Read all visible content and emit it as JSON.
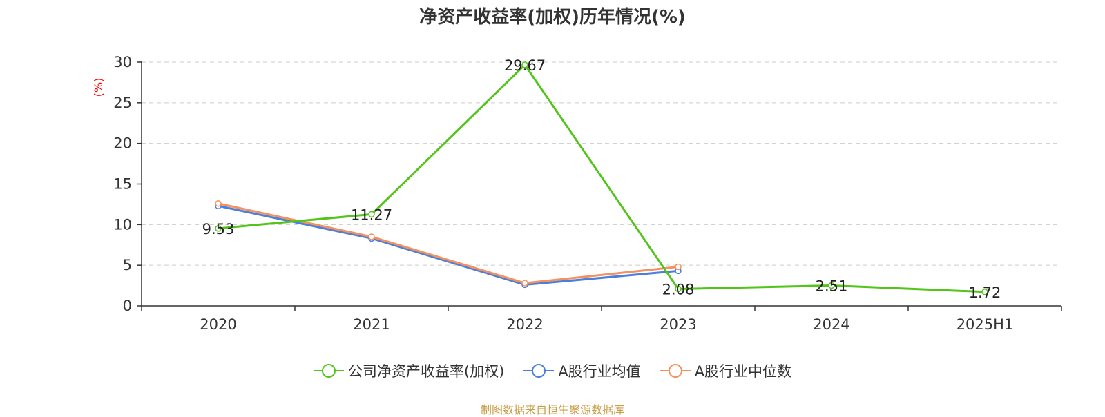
{
  "chart_data": {
    "type": "line",
    "title": "净资产收益率(加权)历年情况(%)",
    "ylabel": "(%)",
    "xlabel": "",
    "categories": [
      "2020",
      "2021",
      "2022",
      "2023",
      "2024",
      "2025H1"
    ],
    "ylim": [
      0,
      30
    ],
    "yticks": [
      "0",
      "5",
      "10",
      "15",
      "20",
      "25",
      "30"
    ],
    "grid": true,
    "legend_position": "bottom",
    "series": [
      {
        "name": "公司净资产收益率(加权)",
        "color": "#52c41a",
        "values": [
          9.53,
          11.27,
          29.67,
          2.08,
          2.51,
          1.72
        ],
        "labels": [
          "9.53",
          "11.27",
          "29.67",
          "2.08",
          "2.51",
          "1.72"
        ]
      },
      {
        "name": "A股行业均值",
        "color": "#4a7fdc",
        "values": [
          12.3,
          8.3,
          2.6,
          4.3,
          null,
          null
        ]
      },
      {
        "name": "A股行业中位数",
        "color": "#f4915f",
        "values": [
          12.6,
          8.5,
          2.8,
          4.8,
          null,
          null
        ]
      }
    ]
  },
  "source_text": "制图数据来自恒生聚源数据库",
  "colors": {
    "source": "#c8a04a",
    "ylabel": "#ff0000",
    "axis": "#333333",
    "grid": "#cccccc"
  }
}
